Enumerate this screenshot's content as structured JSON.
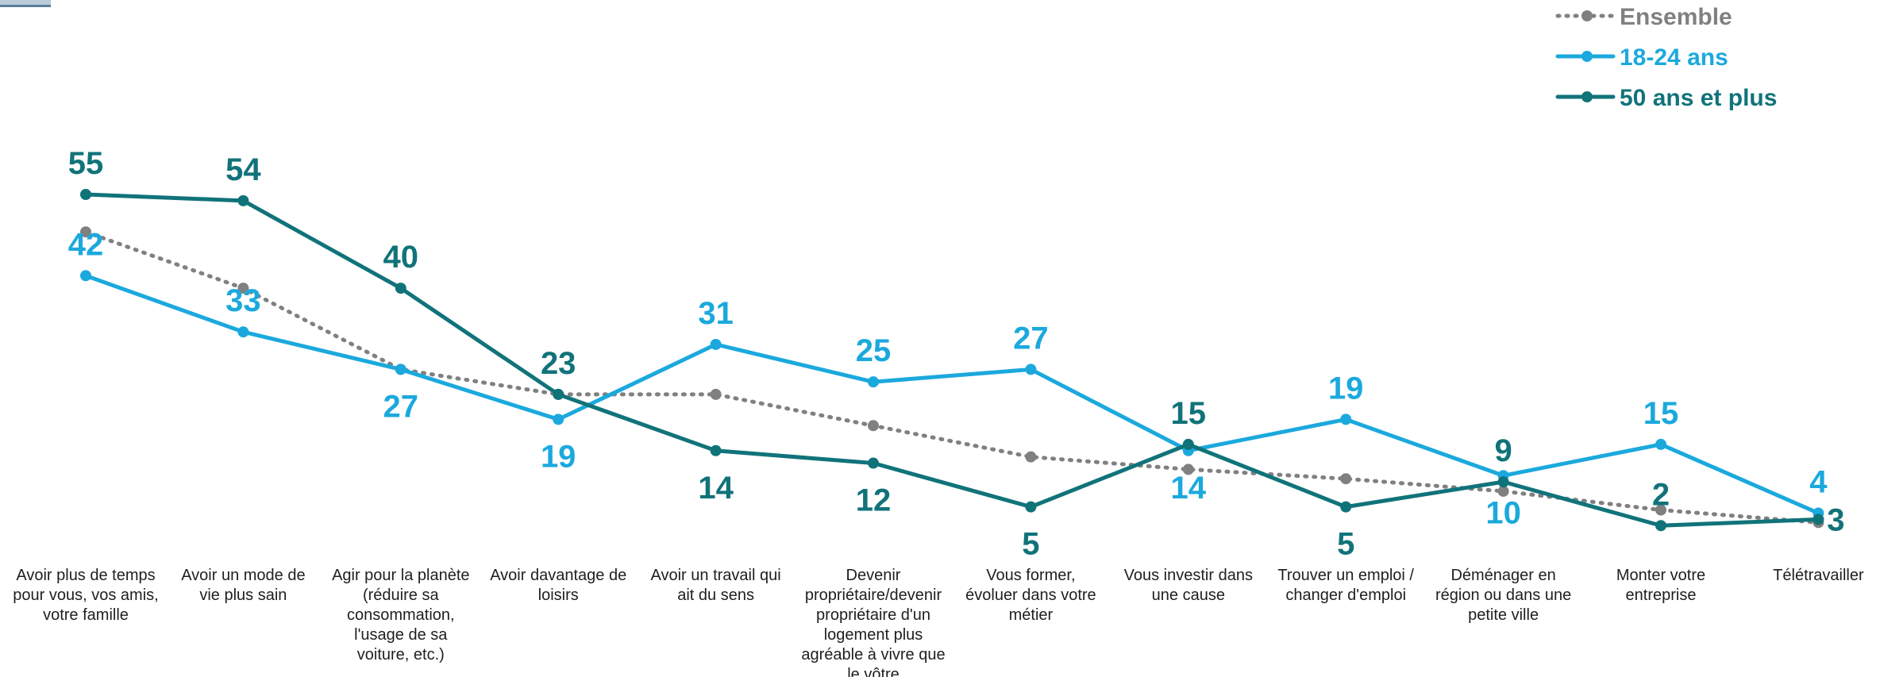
{
  "chart_data": {
    "type": "line",
    "title": "",
    "xlabel": "",
    "ylabel": "",
    "ylim": [
      0,
      60
    ],
    "grid": false,
    "legend": "top-right",
    "categories": [
      "Avoir plus de temps pour vous, vos amis, votre famille",
      "Avoir un mode de vie plus sain",
      "Agir pour la planète (réduire sa consommation, l'usage de sa voiture, etc.)",
      "Avoir davantage de loisirs",
      "Avoir un travail qui ait du sens",
      "Devenir propriétaire/devenir propriétaire d'un logement plus agréable à vivre que le vôtre",
      "Vous former, évoluer dans votre métier",
      "Vous investir dans une cause",
      "Trouver un emploi / changer d'emploi",
      "Déménager en région ou dans une petite ville",
      "Monter votre entreprise",
      "Télétravailler"
    ],
    "category_lines": [
      [
        "Avoir plus de temps",
        "pour vous, vos amis,",
        "votre famille"
      ],
      [
        "Avoir un mode de",
        "vie plus sain"
      ],
      [
        "Agir pour la planète",
        "(réduire sa",
        "consommation,",
        "l'usage de sa",
        "voiture, etc.)"
      ],
      [
        "Avoir davantage de",
        "loisirs"
      ],
      [
        "Avoir un travail qui",
        "ait du sens"
      ],
      [
        "Devenir",
        "propriétaire/devenir",
        "propriétaire d'un",
        "logement plus",
        "agréable à vivre que",
        "le vôtre"
      ],
      [
        "Vous former,",
        "évoluer dans votre",
        "métier"
      ],
      [
        "Vous investir dans",
        "une cause"
      ],
      [
        "Trouver un emploi /",
        "changer d'emploi"
      ],
      [
        "Déménager en",
        "région ou dans une",
        "petite ville"
      ],
      [
        "Monter votre",
        "entreprise"
      ],
      [
        "Télétravailler"
      ]
    ],
    "series": [
      {
        "name": "Ensemble",
        "color": "#808080",
        "style": "dotted",
        "values": [
          49,
          40,
          27,
          23,
          23,
          18,
          13,
          11,
          9.5,
          7.5,
          4.5,
          2.5
        ],
        "show_labels": false
      },
      {
        "name": "18-24 ans",
        "color": "#1ba9dd",
        "style": "solid",
        "values": [
          42,
          33,
          27,
          19,
          31,
          25,
          27,
          14,
          19,
          10,
          15,
          4
        ],
        "label_text": [
          "42",
          "33",
          "27",
          "19",
          "31",
          "25",
          "27",
          "14",
          "19",
          "10",
          "15",
          "4"
        ],
        "label_pos": [
          "above",
          "above",
          "below",
          "below",
          "above",
          "above",
          "above",
          "below",
          "above",
          "below",
          "above",
          "above"
        ],
        "show_labels": true
      },
      {
        "name": "50 ans et plus",
        "color": "#11737a",
        "style": "solid",
        "values": [
          55,
          54,
          40,
          23,
          14,
          12,
          5,
          15,
          5,
          9,
          2,
          3
        ],
        "label_text": [
          "55",
          "54",
          "40",
          "23",
          "14",
          "12",
          "5",
          "15",
          "5",
          "9",
          "2",
          "3"
        ],
        "label_pos": [
          "above",
          "above",
          "above",
          "above",
          "below",
          "below",
          "below",
          "above",
          "below",
          "above",
          "above",
          "right"
        ],
        "show_labels": true
      }
    ]
  }
}
